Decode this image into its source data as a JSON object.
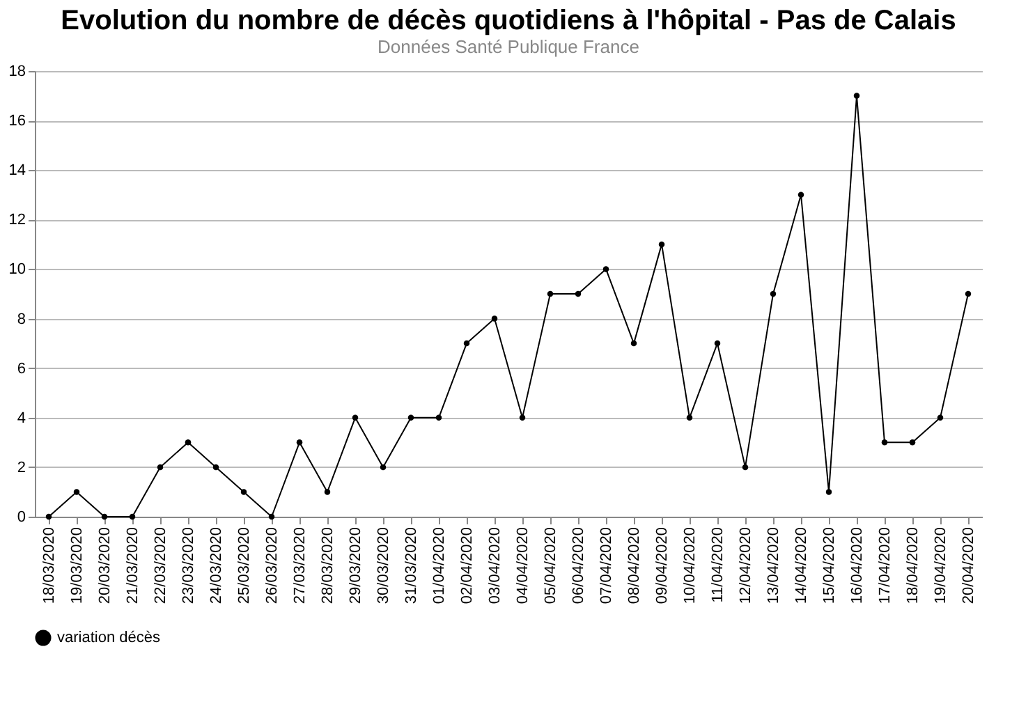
{
  "chart_data": {
    "type": "line",
    "title": "Evolution du nombre de décès quotidiens  à l'hôpital - Pas de Calais",
    "subtitle": "Données Santé Publique France",
    "categories": [
      "18/03/2020",
      "19/03/2020",
      "20/03/2020",
      "21/03/2020",
      "22/03/2020",
      "23/03/2020",
      "24/03/2020",
      "25/03/2020",
      "26/03/2020",
      "27/03/2020",
      "28/03/2020",
      "29/03/2020",
      "30/03/2020",
      "31/03/2020",
      "01/04/2020",
      "02/04/2020",
      "03/04/2020",
      "04/04/2020",
      "05/04/2020",
      "06/04/2020",
      "07/04/2020",
      "08/04/2020",
      "09/04/2020",
      "10/04/2020",
      "11/04/2020",
      "12/04/2020",
      "13/04/2020",
      "14/04/2020",
      "15/04/2020",
      "16/04/2020",
      "17/04/2020",
      "18/04/2020",
      "19/04/2020",
      "20/04/2020"
    ],
    "series": [
      {
        "name": "variation décès",
        "color": "#000000",
        "values": [
          0,
          1,
          0,
          0,
          2,
          3,
          2,
          1,
          0,
          3,
          1,
          4,
          2,
          4,
          4,
          7,
          8,
          4,
          9,
          9,
          10,
          7,
          11,
          4,
          7,
          2,
          9,
          13,
          1,
          17,
          3,
          3,
          4,
          9
        ]
      }
    ],
    "ylim": [
      0,
      18
    ],
    "yticks": [
      0,
      2,
      4,
      6,
      8,
      10,
      12,
      14,
      16,
      18
    ],
    "grid": "y",
    "legend": "bottom",
    "marker": "circle",
    "line_style": "solid"
  }
}
